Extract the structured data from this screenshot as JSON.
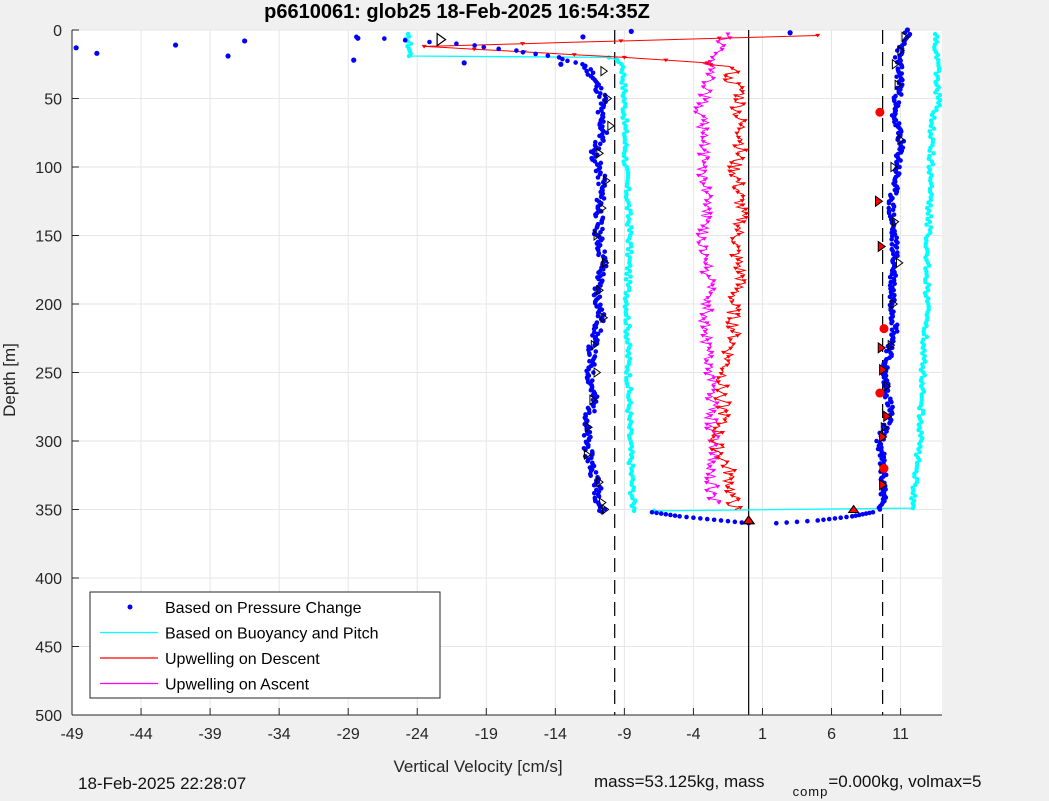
{
  "chart_data": {
    "type": "scatter",
    "title": "p6610061: glob25 18-Feb-2025 16:54:35Z",
    "xlabel": "Vertical Velocity [cm/s]",
    "ylabel": "Depth [m]",
    "xlim": [
      -49,
      14
    ],
    "ylim": [
      0,
      500
    ],
    "y_reversed": true,
    "grid": true,
    "legend_position": "bottom-left",
    "xticks": [
      -49,
      -44,
      -39,
      -34,
      -29,
      -24,
      -19,
      -14,
      -9,
      -4,
      1,
      6,
      11
    ],
    "yticks": [
      0,
      50,
      100,
      150,
      200,
      250,
      300,
      350,
      400,
      450,
      500
    ],
    "reference_lines": {
      "solid_x": 0,
      "dashed_x": [
        -9.7,
        9.7
      ]
    },
    "series": [
      {
        "name": "Based on Pressure Change",
        "style": "dots",
        "color": "#0000ff",
        "descent": {
          "y": [
            5,
            10,
            15,
            20,
            25,
            30,
            40,
            50,
            60,
            75,
            90,
            110,
            130,
            150,
            170,
            190,
            210,
            230,
            250,
            270,
            290,
            310,
            330,
            345,
            352
          ],
          "x": [
            -28.5,
            -21.0,
            -17.0,
            -14.0,
            -12.0,
            -11.5,
            -11.0,
            -10.5,
            -10.8,
            -10.5,
            -11.2,
            -10.6,
            -10.8,
            -10.9,
            -10.5,
            -11.0,
            -10.7,
            -11.3,
            -11.5,
            -11.2,
            -11.8,
            -11.6,
            -11.0,
            -10.8,
            -10.6
          ]
        },
        "ascent": {
          "y": [
            2,
            10,
            20,
            40,
            60,
            80,
            100,
            130,
            160,
            190,
            220,
            250,
            280,
            300,
            320,
            340,
            350
          ],
          "x": [
            11.5,
            11.2,
            10.8,
            11.0,
            10.5,
            11.0,
            10.8,
            10.3,
            10.6,
            10.4,
            10.6,
            9.8,
            10.3,
            9.5,
            9.7,
            9.8,
            9.5
          ]
        },
        "bottom_arc": {
          "y": [
            352,
            355,
            358,
            360,
            360,
            358,
            355,
            352
          ],
          "x": [
            -7,
            -5,
            -2,
            0,
            2,
            5,
            7.5,
            9
          ]
        },
        "outliers": {
          "x": [
            -48.7,
            -47.2,
            -41.5,
            -37.7,
            -36.5,
            -28.3,
            -28.6,
            -20.6,
            -13.6,
            -12.0,
            -8.5,
            3.0,
            11.5
          ],
          "y": [
            13,
            17,
            11,
            19,
            8,
            6,
            22,
            24,
            25,
            5,
            1,
            2,
            0
          ]
        }
      },
      {
        "name": "Based on Buoyancy and Pitch",
        "style": "line-dots",
        "color": "#00ffff",
        "descent": {
          "y": [
            3,
            10,
            19,
            20,
            25,
            50,
            100,
            150,
            200,
            250,
            300,
            340,
            351
          ],
          "x": [
            -24.8,
            -24.6,
            -24.5,
            -10.0,
            -9.1,
            -9.0,
            -8.9,
            -8.6,
            -8.8,
            -8.7,
            -8.6,
            -8.4,
            -8.3
          ]
        },
        "ascent": {
          "y": [
            351,
            349,
            340,
            300,
            250,
            200,
            150,
            100,
            60,
            55,
            40,
            20,
            3
          ],
          "x": [
            -7.0,
            11.8,
            11.9,
            12.4,
            12.6,
            12.9,
            13.0,
            13.2,
            13.3,
            13.8,
            13.6,
            13.7,
            13.5
          ]
        }
      },
      {
        "name": "Upwelling on Descent",
        "style": "line-triangles",
        "color": "#ff0000",
        "y": [
          4,
          12,
          20,
          24,
          28,
          35,
          45,
          60,
          80,
          100,
          120,
          140,
          160,
          180,
          200,
          220,
          240,
          260,
          280,
          300,
          320,
          340,
          350
        ],
        "x": [
          5.0,
          -23.5,
          -9.0,
          -3.0,
          -1.0,
          -1.5,
          -0.5,
          -0.8,
          -0.4,
          -1.0,
          -0.7,
          -0.6,
          -1.0,
          -0.5,
          -1.2,
          -1.0,
          -1.5,
          -2.0,
          -1.8,
          -2.5,
          -1.5,
          -1.2,
          -1.0
        ]
      },
      {
        "name": "Upwelling on Ascent",
        "style": "line-triangles",
        "color": "#ff00ff",
        "y": [
          345,
          320,
          300,
          280,
          260,
          240,
          220,
          200,
          180,
          160,
          140,
          120,
          100,
          80,
          60,
          40,
          20,
          10,
          3
        ],
        "x": [
          -2.5,
          -2.8,
          -2.4,
          -2.8,
          -2.5,
          -3.0,
          -3.2,
          -3.0,
          -2.8,
          -3.4,
          -3.0,
          -3.2,
          -3.3,
          -3.2,
          -3.4,
          -3.0,
          -2.9,
          -2.0,
          -1.5
        ]
      }
    ],
    "markers": {
      "black_triangles_descent": {
        "y": [
          30,
          50,
          70,
          90,
          110,
          130,
          150,
          170,
          190,
          210,
          230,
          250,
          270,
          290,
          310,
          330,
          345,
          350
        ],
        "x": [
          -10.5,
          -10.2,
          -10.0,
          -10.8,
          -10.3,
          -10.6,
          -11.0,
          -10.4,
          -10.8,
          -10.5,
          -11.2,
          -11.0,
          -11.3,
          -11.6,
          -11.7,
          -10.8,
          -10.6,
          -10.4
        ]
      },
      "black_triangles_ascent": {
        "y": [
          5,
          15,
          25,
          40,
          80,
          100,
          140,
          170,
          200,
          230,
          260,
          290,
          320
        ],
        "x": [
          11.3,
          11.0,
          10.6,
          10.8,
          11.0,
          10.5,
          10.6,
          10.9,
          10.5,
          10.3,
          10.0,
          9.8,
          9.7
        ]
      },
      "red_markers_ascent": {
        "y": [
          60,
          125,
          158,
          218,
          232,
          248,
          265,
          282,
          297,
          320,
          332,
          350
        ],
        "x": [
          9.5,
          9.4,
          9.6,
          9.8,
          9.6,
          9.7,
          9.5,
          10.0,
          9.7,
          9.8,
          9.7,
          7.6
        ]
      },
      "white_triangle": {
        "x": [
          -22.3
        ],
        "y": [
          7
        ]
      },
      "bottom_triangle": {
        "x": [
          0
        ],
        "y": [
          358
        ]
      }
    }
  },
  "footer": {
    "timestamp": "18-Feb-2025 22:28:07",
    "mass_text": "mass=53.125kg, mass",
    "comp_sub": "comp",
    "comp_text": "=0.000kg, volmax=5"
  }
}
